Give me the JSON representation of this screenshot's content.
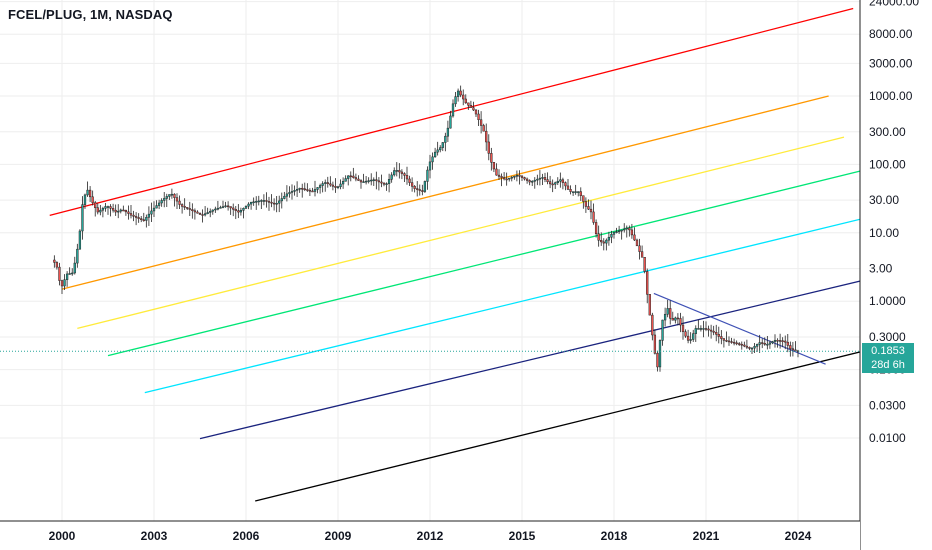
{
  "symbol_title": "FCEL/PLUG, 1M, NASDAQ",
  "price_axis_labels": [
    "24000.00",
    "8000.00",
    "3000.00",
    "1000.00",
    "300.00",
    "100.00",
    "30.00",
    "10.00",
    "3.00",
    "1.0000",
    "0.3000",
    "0.1000",
    "0.0300",
    "0.0100"
  ],
  "time_axis_labels": [
    "2000",
    "2003",
    "2006",
    "2009",
    "2012",
    "2015",
    "2018",
    "2021",
    "2024"
  ],
  "current_price": "0.1853",
  "countdown": "28d 6h",
  "colors": {
    "up_candle": "#26a69a",
    "down_candle": "#ef5350",
    "price_tag": "#26a69a",
    "channel_lines": [
      "#ff0000",
      "#ff9800",
      "#ffeb3b",
      "#00e676",
      "#00e5ff",
      "#1a237e",
      "#000000"
    ],
    "downtrend_line": "#3f51b5"
  },
  "chart_data": {
    "type": "candlestick",
    "title": "FCEL/PLUG, 1M, NASDAQ",
    "y_scale": "log",
    "y_ticks": [
      24000,
      8000,
      3000,
      1000,
      300,
      100,
      30,
      10,
      3,
      1,
      0.3,
      0.1,
      0.03,
      0.01
    ],
    "x_ticks": [
      "2000",
      "2003",
      "2006",
      "2009",
      "2012",
      "2015",
      "2018",
      "2021",
      "2024"
    ],
    "last_value": 0.1853,
    "series_path": [
      [
        1999.75,
        4
      ],
      [
        1999.9,
        3
      ],
      [
        2000.0,
        1.5
      ],
      [
        2000.2,
        2.5
      ],
      [
        2000.4,
        2.6
      ],
      [
        2000.6,
        8
      ],
      [
        2000.7,
        25
      ],
      [
        2000.85,
        45
      ],
      [
        2001.0,
        30
      ],
      [
        2001.2,
        20
      ],
      [
        2001.5,
        25
      ],
      [
        2001.8,
        20
      ],
      [
        2002.0,
        22
      ],
      [
        2002.3,
        18
      ],
      [
        2002.7,
        15
      ],
      [
        2003.0,
        22
      ],
      [
        2003.3,
        30
      ],
      [
        2003.6,
        38
      ],
      [
        2003.9,
        25
      ],
      [
        2004.2,
        22
      ],
      [
        2004.6,
        18
      ],
      [
        2005.0,
        22
      ],
      [
        2005.4,
        25
      ],
      [
        2005.8,
        20
      ],
      [
        2006.2,
        28
      ],
      [
        2006.6,
        30
      ],
      [
        2007.0,
        26
      ],
      [
        2007.4,
        38
      ],
      [
        2007.8,
        45
      ],
      [
        2008.2,
        40
      ],
      [
        2008.6,
        55
      ],
      [
        2009.0,
        45
      ],
      [
        2009.4,
        70
      ],
      [
        2009.8,
        55
      ],
      [
        2010.2,
        60
      ],
      [
        2010.6,
        50
      ],
      [
        2010.9,
        85
      ],
      [
        2011.2,
        70
      ],
      [
        2011.5,
        45
      ],
      [
        2011.8,
        40
      ],
      [
        2012.0,
        100
      ],
      [
        2012.2,
        150
      ],
      [
        2012.4,
        180
      ],
      [
        2012.6,
        300
      ],
      [
        2012.8,
        800
      ],
      [
        2012.95,
        1200
      ],
      [
        2013.2,
        800
      ],
      [
        2013.5,
        600
      ],
      [
        2013.8,
        300
      ],
      [
        2014.0,
        120
      ],
      [
        2014.2,
        70
      ],
      [
        2014.5,
        60
      ],
      [
        2014.9,
        70
      ],
      [
        2015.3,
        55
      ],
      [
        2015.7,
        65
      ],
      [
        2016.0,
        50
      ],
      [
        2016.3,
        60
      ],
      [
        2016.6,
        40
      ],
      [
        2016.9,
        40
      ],
      [
        2017.1,
        25
      ],
      [
        2017.3,
        20
      ],
      [
        2017.5,
        8
      ],
      [
        2017.7,
        7
      ],
      [
        2018.0,
        10
      ],
      [
        2018.3,
        11
      ],
      [
        2018.5,
        12
      ],
      [
        2018.7,
        8
      ],
      [
        2018.9,
        5
      ],
      [
        2019.0,
        4
      ],
      [
        2019.15,
        1
      ],
      [
        2019.3,
        0.3
      ],
      [
        2019.45,
        0.1
      ],
      [
        2019.6,
        0.5
      ],
      [
        2019.8,
        0.8
      ],
      [
        2019.9,
        0.5
      ],
      [
        2020.1,
        0.6
      ],
      [
        2020.3,
        0.35
      ],
      [
        2020.5,
        0.25
      ],
      [
        2020.7,
        0.4
      ],
      [
        2021.0,
        0.4
      ],
      [
        2021.3,
        0.35
      ],
      [
        2021.6,
        0.27
      ],
      [
        2021.9,
        0.25
      ],
      [
        2022.2,
        0.23
      ],
      [
        2022.5,
        0.2
      ],
      [
        2022.8,
        0.25
      ],
      [
        2023.0,
        0.23
      ],
      [
        2023.3,
        0.27
      ],
      [
        2023.6,
        0.26
      ],
      [
        2023.8,
        0.2
      ],
      [
        2024.0,
        0.1853
      ]
    ],
    "channel_lines": [
      {
        "color": "#ff0000",
        "from": [
          1999.6,
          18
        ],
        "to": [
          2025.8,
          19000
        ]
      },
      {
        "color": "#ff9800",
        "from": [
          2000.0,
          1.5
        ],
        "to": [
          2025.0,
          1000
        ]
      },
      {
        "color": "#ffeb3b",
        "from": [
          2000.5,
          0.4
        ],
        "to": [
          2025.5,
          250
        ]
      },
      {
        "color": "#00e676",
        "from": [
          2001.5,
          0.16
        ],
        "to": [
          2026.5,
          90
        ]
      },
      {
        "color": "#00e5ff",
        "from": [
          2002.7,
          0.046
        ],
        "to": [
          2027.7,
          24
        ]
      },
      {
        "color": "#1a237e",
        "from": [
          2004.5,
          0.0098
        ],
        "to": [
          2028.0,
          3.2
        ]
      },
      {
        "color": "#000000",
        "from": [
          2006.3,
          0.0012
        ],
        "to": [
          2028.0,
          0.3
        ]
      }
    ],
    "downtrend_line": {
      "color": "#3f51b5",
      "from": [
        2019.3,
        1.3
      ],
      "to": [
        2024.9,
        0.12
      ]
    }
  }
}
